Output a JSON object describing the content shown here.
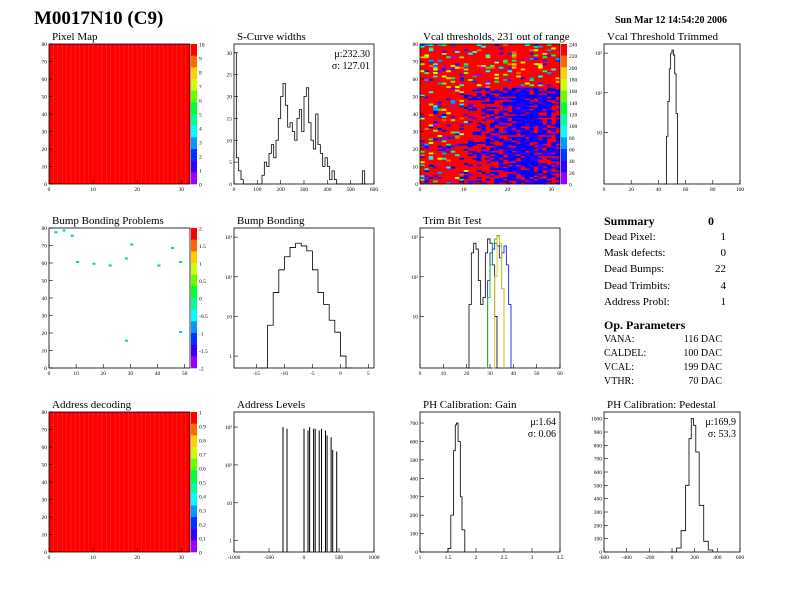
{
  "header": {
    "title": "M0017N10 (C9)",
    "timestamp": "Sun Mar 12 14:54:20 2006"
  },
  "colors": {
    "histo_line": "#000000",
    "map_fill": "#ff0000",
    "trim_green": "#00c000",
    "trim_blue": "#0000ff",
    "trim_yellow": "#e0c000"
  },
  "chart_data": [
    {
      "id": "pixel-map",
      "type": "heatmap",
      "title": "Pixel Map",
      "x_range": [
        0,
        32
      ],
      "y_range": [
        0,
        80
      ],
      "x_ticks": [
        "0",
        "10",
        "20",
        "30"
      ],
      "y_ticks": [
        "0",
        "10",
        "20",
        "30",
        "40",
        "50",
        "60",
        "70",
        "80"
      ],
      "palette_ticks": [
        "0",
        "1",
        "2",
        "3",
        "4",
        "5",
        "6",
        "7",
        "8",
        "9",
        "10"
      ],
      "fill": "uniform-10"
    },
    {
      "id": "scurve-widths",
      "type": "line",
      "title": "S-Curve widths",
      "x_range": [
        0,
        600
      ],
      "y_range": [
        0,
        32
      ],
      "x_ticks": [
        "0",
        "100",
        "200",
        "300",
        "400",
        "500",
        "600"
      ],
      "y_ticks": [
        "0",
        "5",
        "10",
        "15",
        "20",
        "25",
        "30"
      ],
      "stats": [
        "μ:232.30",
        "σ: 127.01"
      ],
      "values": [
        [
          0,
          30
        ],
        [
          10,
          6
        ],
        [
          20,
          3
        ],
        [
          30,
          1
        ],
        [
          40,
          0
        ],
        [
          110,
          0
        ],
        [
          120,
          2
        ],
        [
          130,
          5
        ],
        [
          140,
          4
        ],
        [
          150,
          7
        ],
        [
          160,
          9
        ],
        [
          170,
          6
        ],
        [
          180,
          10
        ],
        [
          190,
          15
        ],
        [
          200,
          20
        ],
        [
          210,
          23
        ],
        [
          220,
          18
        ],
        [
          230,
          13
        ],
        [
          240,
          14
        ],
        [
          250,
          12
        ],
        [
          260,
          10
        ],
        [
          270,
          15
        ],
        [
          280,
          17
        ],
        [
          290,
          12
        ],
        [
          300,
          20
        ],
        [
          310,
          22
        ],
        [
          320,
          14
        ],
        [
          330,
          10
        ],
        [
          340,
          8
        ],
        [
          350,
          16
        ],
        [
          360,
          9
        ],
        [
          370,
          7
        ],
        [
          380,
          4
        ],
        [
          390,
          6
        ],
        [
          400,
          4
        ],
        [
          410,
          1
        ],
        [
          420,
          3
        ],
        [
          430,
          1
        ],
        [
          440,
          0
        ],
        [
          540,
          0
        ],
        [
          550,
          3
        ],
        [
          560,
          0
        ],
        [
          570,
          0
        ]
      ]
    },
    {
      "id": "vcal-thresholds",
      "type": "heatmap",
      "title": "Vcal thresholds, 231 out of range",
      "x_range": [
        0,
        32
      ],
      "y_range": [
        0,
        80
      ],
      "x_ticks": [
        "0",
        "10",
        "20",
        "30"
      ],
      "y_ticks": [
        "0",
        "10",
        "20",
        "30",
        "40",
        "50",
        "60",
        "70",
        "80"
      ],
      "palette_ticks": [
        "0",
        "20",
        "40",
        "60",
        "80",
        "100",
        "120",
        "140",
        "160",
        "180",
        "200",
        "220",
        "240"
      ],
      "fill": "thresholds"
    },
    {
      "id": "vcal-trimmed",
      "type": "line",
      "title": "Vcal Threshold Trimmed",
      "log_y": true,
      "x_range": [
        0,
        100
      ],
      "y_range": [
        0.5,
        1700
      ],
      "x_ticks": [
        "0",
        "20",
        "40",
        "60",
        "80",
        "100"
      ],
      "y_ticks": [
        "10",
        "10²",
        "10³"
      ],
      "values": [
        [
          44,
          0.5
        ],
        [
          46,
          8
        ],
        [
          47,
          60
        ],
        [
          48,
          400
        ],
        [
          49,
          1000
        ],
        [
          50,
          1200
        ],
        [
          51,
          900
        ],
        [
          52,
          300
        ],
        [
          53,
          30
        ],
        [
          54,
          0.5
        ]
      ]
    },
    {
      "id": "bump-map",
      "type": "heatmap",
      "title": "Bump Bonding Problems",
      "x_range": [
        0,
        52
      ],
      "y_range": [
        0,
        80
      ],
      "x_ticks": [
        "0",
        "10",
        "20",
        "30",
        "40",
        "50"
      ],
      "y_ticks": [
        "0",
        "10",
        "20",
        "30",
        "40",
        "50",
        "60",
        "70",
        "80"
      ],
      "palette_ticks": [
        "2",
        "1.5",
        "1",
        "0.5",
        "0",
        "-0.5",
        "-1",
        "-1.5",
        "-2"
      ],
      "fill": "sparse"
    },
    {
      "id": "bump-bonding",
      "type": "line",
      "title": "Bump Bonding",
      "log_y": true,
      "x_range": [
        -19,
        6
      ],
      "y_range": [
        0.5,
        1700
      ],
      "x_ticks": [
        "-15",
        "-10",
        "-5",
        "0",
        "5"
      ],
      "y_ticks": [
        "1",
        "10",
        "10²",
        "10³"
      ],
      "values": [
        [
          -14.5,
          0.5
        ],
        [
          -13.5,
          0.5
        ],
        [
          -13,
          6
        ],
        [
          -12,
          40
        ],
        [
          -11,
          150
        ],
        [
          -10,
          320
        ],
        [
          -9,
          550
        ],
        [
          -8,
          700
        ],
        [
          -7,
          600
        ],
        [
          -6,
          450
        ],
        [
          -5,
          150
        ],
        [
          -4,
          40
        ],
        [
          -3,
          20
        ],
        [
          -2,
          8
        ],
        [
          -1,
          4
        ],
        [
          0,
          1
        ],
        [
          0.5,
          1
        ],
        [
          1,
          0.5
        ],
        [
          2,
          0.5
        ]
      ]
    },
    {
      "id": "trim-bit-test",
      "type": "line",
      "title": "Trim Bit Test",
      "log_y": true,
      "x_range": [
        0,
        60
      ],
      "y_range": [
        0.5,
        1700
      ],
      "x_ticks": [
        "0",
        "10",
        "20",
        "30",
        "40",
        "50",
        "60"
      ],
      "y_ticks": [
        "10",
        "10²",
        "10³"
      ],
      "series": [
        {
          "color": "#000000",
          "values": [
            [
              20,
              0.5
            ],
            [
              21,
              20
            ],
            [
              22,
              400
            ],
            [
              23,
              700
            ],
            [
              24,
              500
            ],
            [
              25,
              80
            ],
            [
              26,
              20
            ],
            [
              27,
              30
            ],
            [
              28,
              400
            ],
            [
              29,
              900
            ],
            [
              30,
              700
            ],
            [
              31,
              200
            ],
            [
              32,
              10
            ],
            [
              33,
              0.5
            ]
          ]
        },
        {
          "color": "#0000ff",
          "values": [
            [
              28,
              0.5
            ],
            [
              29,
              80
            ],
            [
              30,
              400
            ],
            [
              31,
              500
            ],
            [
              32,
              700
            ],
            [
              33,
              600
            ],
            [
              34,
              300
            ],
            [
              35,
              400
            ],
            [
              36,
              600
            ],
            [
              37,
              200
            ],
            [
              38,
              20
            ],
            [
              39,
              0.5
            ]
          ]
        },
        {
          "color": "#00c000",
          "values": [
            [
              28,
              0.5
            ],
            [
              29,
              30
            ],
            [
              30,
              200
            ],
            [
              31,
              700
            ],
            [
              32,
              900
            ],
            [
              33,
              1100
            ],
            [
              34,
              600
            ],
            [
              35,
              50
            ],
            [
              36,
              0.5
            ]
          ]
        },
        {
          "color": "#e0c000",
          "values": [
            [
              31,
              0.5
            ],
            [
              32,
              100
            ],
            [
              33,
              1000
            ],
            [
              34,
              700
            ],
            [
              35,
              50
            ],
            [
              36,
              0.5
            ]
          ]
        }
      ]
    },
    {
      "id": "address-decoding",
      "type": "heatmap",
      "title": "Address decoding",
      "x_range": [
        0,
        32
      ],
      "y_range": [
        0,
        80
      ],
      "x_ticks": [
        "0",
        "10",
        "20",
        "30"
      ],
      "y_ticks": [
        "0",
        "10",
        "20",
        "30",
        "40",
        "50",
        "60",
        "70",
        "80"
      ],
      "palette_ticks": [
        "0",
        "0.1",
        "0.2",
        "0.3",
        "0.4",
        "0.5",
        "0.6",
        "0.7",
        "0.8",
        "0.9",
        "1"
      ],
      "fill": "uniform-1"
    },
    {
      "id": "address-levels",
      "type": "line",
      "title": "Address Levels",
      "log_y": true,
      "x_range": [
        -1000,
        1000
      ],
      "y_range": [
        0.5,
        2500
      ],
      "x_ticks": [
        "-1000",
        "-500",
        "0",
        "500",
        "1000"
      ],
      "y_ticks": [
        "1",
        "10",
        "10²",
        "10³"
      ],
      "values": [
        [
          -300,
          1000
        ],
        [
          0,
          900
        ],
        [
          80,
          1000
        ],
        [
          160,
          900
        ],
        [
          250,
          900
        ],
        [
          330,
          600
        ],
        [
          410,
          250
        ]
      ]
    },
    {
      "id": "ph-gain",
      "type": "line",
      "title": "PH Calibration: Gain",
      "x_range": [
        1,
        3.5
      ],
      "y_range": [
        0,
        760
      ],
      "x_ticks": [
        "1",
        "1.5",
        "2",
        "2.5",
        "3",
        "3.5"
      ],
      "y_ticks": [
        "0",
        "100",
        "200",
        "300",
        "400",
        "500",
        "600",
        "700"
      ],
      "stats": [
        "μ:1.64",
        "σ: 0.06"
      ],
      "values": [
        [
          1.45,
          0
        ],
        [
          1.5,
          20
        ],
        [
          1.55,
          200
        ],
        [
          1.6,
          550
        ],
        [
          1.63,
          690
        ],
        [
          1.65,
          700
        ],
        [
          1.68,
          600
        ],
        [
          1.72,
          300
        ],
        [
          1.75,
          120
        ],
        [
          1.8,
          0
        ]
      ]
    },
    {
      "id": "ph-pedestal",
      "type": "line",
      "title": "PH Calibration: Pedestal",
      "x_range": [
        -600,
        600
      ],
      "y_range": [
        0,
        1050
      ],
      "x_ticks": [
        "-600",
        "-400",
        "-200",
        "0",
        "200",
        "400",
        "600"
      ],
      "y_ticks": [
        "0",
        "100",
        "200",
        "300",
        "400",
        "500",
        "600",
        "700",
        "800",
        "900",
        "1000"
      ],
      "stats": [
        "μ:169.9",
        "σ: 53.3"
      ],
      "values": [
        [
          -10,
          0
        ],
        [
          40,
          30
        ],
        [
          80,
          160
        ],
        [
          120,
          500
        ],
        [
          150,
          850
        ],
        [
          170,
          1000
        ],
        [
          190,
          950
        ],
        [
          210,
          750
        ],
        [
          240,
          350
        ],
        [
          280,
          80
        ],
        [
          320,
          15
        ],
        [
          360,
          0
        ]
      ]
    }
  ],
  "summary": {
    "title": "Summary",
    "total": "0",
    "rows": [
      {
        "label": "Dead Pixel:",
        "value": "1"
      },
      {
        "label": "Mask defects:",
        "value": "0"
      },
      {
        "label": "Dead Bumps:",
        "value": "22"
      },
      {
        "label": "Dead Trimbits:",
        "value": "4"
      },
      {
        "label": "Address Probl:",
        "value": "1"
      }
    ],
    "op_title": "Op. Parameters",
    "params": [
      {
        "label": "VANA:",
        "value": "116 DAC"
      },
      {
        "label": "CALDEL:",
        "value": "100 DAC"
      },
      {
        "label": "VCAL:",
        "value": "199 DAC"
      },
      {
        "label": "VTHR:",
        "value": "70 DAC"
      }
    ]
  }
}
